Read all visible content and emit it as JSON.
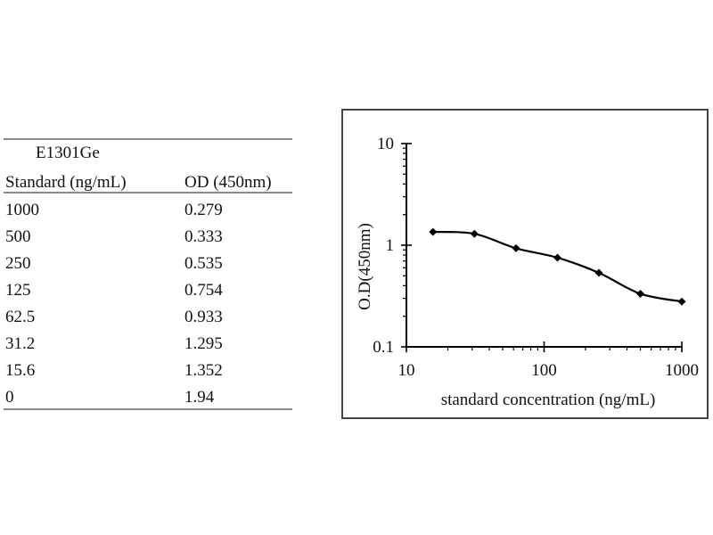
{
  "table": {
    "title": "E1301Ge",
    "headers": [
      "Standard (ng/mL)",
      "OD (450nm)"
    ],
    "rows": [
      [
        "1000",
        "0.279"
      ],
      [
        "500",
        "0.333"
      ],
      [
        "250",
        "0.535"
      ],
      [
        "125",
        "0.754"
      ],
      [
        "62.5",
        "0.933"
      ],
      [
        "31.2",
        "1.295"
      ],
      [
        "15.6",
        "1.352"
      ],
      [
        "0",
        "1.94"
      ]
    ]
  },
  "chart_data": {
    "type": "line",
    "title": "",
    "xlabel": "standard concentration (ng/mL)",
    "ylabel": "O.D(450nm)",
    "xscale": "log",
    "yscale": "log",
    "xlim": [
      10,
      1000
    ],
    "ylim": [
      0.1,
      10
    ],
    "xticks": [
      "10",
      "100",
      "1000"
    ],
    "yticks": [
      "0.1",
      "1",
      "10"
    ],
    "grid": false,
    "series": [
      {
        "x": [
          15.6,
          31.2,
          62.5,
          125,
          250,
          500,
          1000
        ],
        "y": [
          1.352,
          1.295,
          0.933,
          0.754,
          0.535,
          0.333,
          0.279
        ]
      }
    ],
    "colors": {
      "line": "#000000",
      "marker": "#000000"
    }
  }
}
